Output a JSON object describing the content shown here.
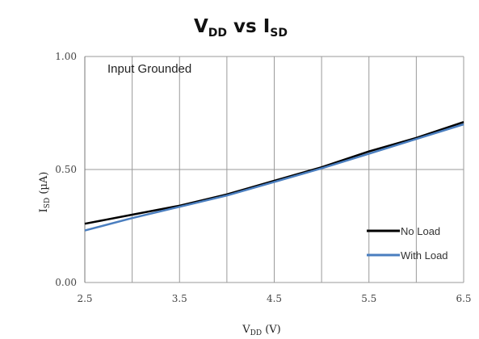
{
  "chart_data": {
    "type": "line",
    "title": {
      "main_v": "V",
      "main_v_sub": "DD",
      "main_mid": " vs I",
      "main_i_sub": "SD"
    },
    "annotation": "Input Grounded",
    "xlabel": {
      "main": "V",
      "sub": "DD",
      "unit": " (V)"
    },
    "ylabel": {
      "main": "I",
      "sub": "SD",
      "unit": " (µA)"
    },
    "xlim": [
      2.5,
      6.5
    ],
    "ylim": [
      0,
      1
    ],
    "x_ticks": [
      "2.5",
      "3.5",
      "4.5",
      "5.5",
      "6.5"
    ],
    "x_ticks_raw": [
      2.5,
      3.5,
      4.5,
      5.5,
      6.5
    ],
    "y_ticks": [
      "0.00",
      "0.50",
      "1.00"
    ],
    "y_ticks_raw": [
      0,
      0.5,
      1.0
    ],
    "grid": true,
    "legend_position": "bottom-right",
    "series": [
      {
        "name": "No Load",
        "color": "#000000",
        "x": [
          2.5,
          3.0,
          3.5,
          4.0,
          4.5,
          5.0,
          5.5,
          6.0,
          6.5
        ],
        "y": [
          0.26,
          0.3,
          0.34,
          0.39,
          0.45,
          0.51,
          0.58,
          0.64,
          0.71
        ]
      },
      {
        "name": "With Load",
        "color": "#4a7ebf",
        "x": [
          2.5,
          3.0,
          3.5,
          4.0,
          4.5,
          5.0,
          5.5,
          6.0,
          6.5
        ],
        "y": [
          0.23,
          0.285,
          0.335,
          0.385,
          0.445,
          0.505,
          0.57,
          0.635,
          0.7
        ]
      }
    ]
  }
}
